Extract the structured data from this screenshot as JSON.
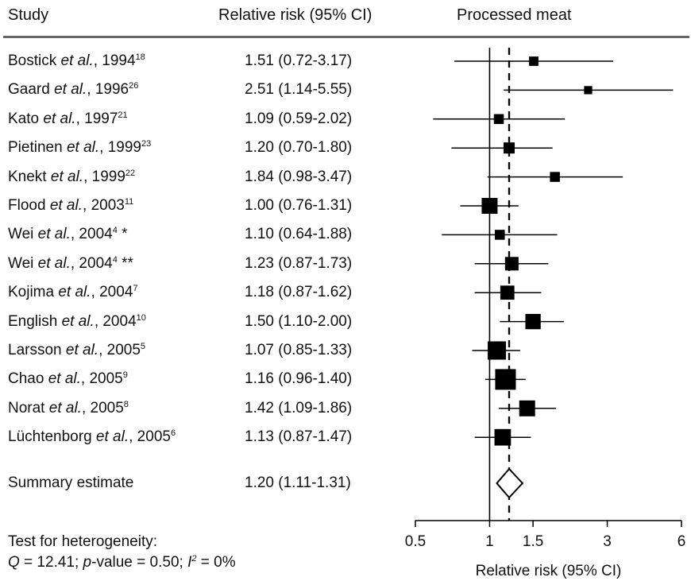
{
  "header": {
    "study_col": "Study",
    "rr_col": "Relative risk (95% CI)",
    "panel_title": "Processed meat"
  },
  "chart_data": {
    "type": "forest",
    "title": "Processed meat",
    "xlabel": "Relative risk (95% CI)",
    "x_scale": "log",
    "xticks": [
      0.5,
      1,
      1.5,
      3,
      6
    ],
    "xtick_labels": [
      "0.5",
      "1",
      "1.5",
      "3",
      "6"
    ],
    "xlim": [
      0.5,
      6
    ],
    "reference_line": 1,
    "summary_line": 1.2,
    "studies": [
      {
        "author": "Bostick",
        "year": "1994",
        "ref": "18",
        "mark": "",
        "rr": 1.51,
        "lo": 0.72,
        "hi": 3.17,
        "ci_text": "1.51 (0.72-3.17)",
        "weight": 0.9
      },
      {
        "author": "Gaard",
        "year": "1996",
        "ref": "26",
        "mark": "",
        "rr": 2.51,
        "lo": 1.14,
        "hi": 5.55,
        "ci_text": "2.51 (1.14-5.55)",
        "weight": 0.7
      },
      {
        "author": "Kato",
        "year": "1997",
        "ref": "21",
        "mark": "",
        "rr": 1.09,
        "lo": 0.59,
        "hi": 2.02,
        "ci_text": "1.09 (0.59-2.02)",
        "weight": 1.0
      },
      {
        "author": "Pietinen",
        "year": "1999",
        "ref": "23",
        "mark": "",
        "rr": 1.2,
        "lo": 0.7,
        "hi": 1.8,
        "ci_text": "1.20 (0.70-1.80)",
        "weight": 1.2
      },
      {
        "author": "Knekt",
        "year": "1999",
        "ref": "22",
        "mark": "",
        "rr": 1.84,
        "lo": 0.98,
        "hi": 3.47,
        "ci_text": "1.84 (0.98-3.47)",
        "weight": 1.0
      },
      {
        "author": "Flood",
        "year": "2003",
        "ref": "11",
        "mark": "",
        "rr": 1.0,
        "lo": 0.76,
        "hi": 1.31,
        "ci_text": "1.00 (0.76-1.31)",
        "weight": 2.0
      },
      {
        "author": "Wei",
        "year": "2004",
        "ref": "4",
        "mark": "*",
        "rr": 1.1,
        "lo": 0.64,
        "hi": 1.88,
        "ci_text": "1.10 (0.64-1.88)",
        "weight": 1.0
      },
      {
        "author": "Wei",
        "year": "2004",
        "ref": "4",
        "mark": "**",
        "rr": 1.23,
        "lo": 0.87,
        "hi": 1.73,
        "ci_text": "1.23 (0.87-1.73)",
        "weight": 1.6
      },
      {
        "author": "Kojima",
        "year": "2004",
        "ref": "7",
        "mark": "",
        "rr": 1.18,
        "lo": 0.87,
        "hi": 1.62,
        "ci_text": "1.18 (0.87-1.62)",
        "weight": 1.7
      },
      {
        "author": "English",
        "year": "2004",
        "ref": "10",
        "mark": "",
        "rr": 1.5,
        "lo": 1.1,
        "hi": 2.0,
        "ci_text": "1.50 (1.10-2.00)",
        "weight": 1.9
      },
      {
        "author": "Larsson",
        "year": "2005",
        "ref": "5",
        "mark": "",
        "rr": 1.07,
        "lo": 0.85,
        "hi": 1.33,
        "ci_text": "1.07 (0.85-1.33)",
        "weight": 2.4
      },
      {
        "author": "Chao",
        "year": "2005",
        "ref": "9",
        "mark": "",
        "rr": 1.16,
        "lo": 0.96,
        "hi": 1.4,
        "ci_text": "1.16 (0.96-1.40)",
        "weight": 2.8
      },
      {
        "author": "Norat",
        "year": "2005",
        "ref": "8",
        "mark": "",
        "rr": 1.42,
        "lo": 1.09,
        "hi": 1.86,
        "ci_text": "1.42 (1.09-1.86)",
        "weight": 2.0
      },
      {
        "author": "Lüchtenborg",
        "year": "2005",
        "ref": "6",
        "mark": "",
        "rr": 1.13,
        "lo": 0.87,
        "hi": 1.47,
        "ci_text": "1.13 (0.87-1.47)",
        "weight": 2.1
      }
    ],
    "summary": {
      "label": "Summary estimate",
      "rr": 1.2,
      "lo": 1.11,
      "hi": 1.31,
      "ci_text": "1.20 (1.11-1.31)"
    }
  },
  "footer": {
    "line1": "Test for heterogeneity:",
    "q_label": "Q",
    "q_value": " = 12.41; ",
    "p_label": "p",
    "p_value": "-value = 0.50; ",
    "i_label": "I",
    "i_exp": "2",
    "i_value": " = 0%"
  }
}
